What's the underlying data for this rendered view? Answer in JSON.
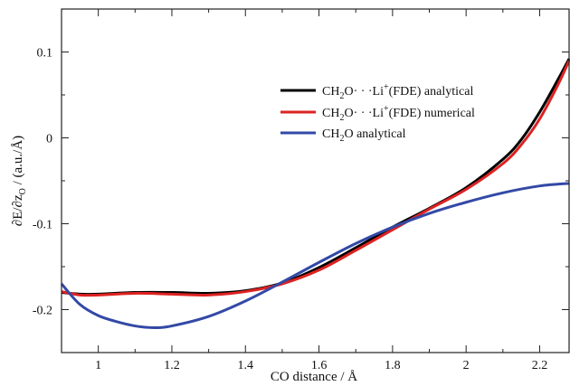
{
  "chart_data": {
    "type": "line",
    "title": "",
    "xlabel": "CO distance / Å",
    "ylabel": "∂E/∂z_O / (a.u./Å)",
    "xlim": [
      0.9,
      2.28
    ],
    "ylim": [
      -0.25,
      0.15
    ],
    "grid": false,
    "legend_position": "top-right",
    "x_ticks": [
      1,
      1.2,
      1.4,
      1.6,
      1.8,
      2,
      2.2
    ],
    "x_tick_labels": [
      "1",
      "1.2",
      "1.4",
      "1.6",
      "1.8",
      "2",
      "2.2"
    ],
    "y_ticks": [
      0.1,
      0,
      -0.1,
      -0.2
    ],
    "y_tick_labels": [
      "0.1",
      "0",
      "-0.1",
      "-0.2"
    ],
    "series": [
      {
        "name": "CH2O···Li+(FDE) analytical",
        "color": "#000000",
        "x": [
          0.9,
          0.95,
          1.0,
          1.1,
          1.2,
          1.3,
          1.4,
          1.5,
          1.6,
          1.7,
          1.8,
          1.9,
          2.0,
          2.1,
          2.15,
          2.2,
          2.25,
          2.28
        ],
        "y": [
          -0.18,
          -0.182,
          -0.182,
          -0.18,
          -0.18,
          -0.181,
          -0.178,
          -0.169,
          -0.151,
          -0.128,
          -0.104,
          -0.082,
          -0.058,
          -0.025,
          -0.002,
          0.03,
          0.068,
          0.092
        ]
      },
      {
        "name": "CH2O···Li+(FDE) numerical",
        "color": "#dd2222",
        "x": [
          0.9,
          0.95,
          1.0,
          1.1,
          1.2,
          1.3,
          1.4,
          1.5,
          1.6,
          1.7,
          1.8,
          1.9,
          2.0,
          2.1,
          2.15,
          2.2,
          2.25,
          2.28
        ],
        "y": [
          -0.179,
          -0.183,
          -0.183,
          -0.181,
          -0.182,
          -0.183,
          -0.179,
          -0.17,
          -0.154,
          -0.131,
          -0.107,
          -0.083,
          -0.06,
          -0.03,
          -0.008,
          0.022,
          0.062,
          0.09
        ]
      },
      {
        "name": "CH2O analytical",
        "color": "#3349a6",
        "x": [
          0.9,
          0.95,
          1.0,
          1.05,
          1.1,
          1.15,
          1.2,
          1.3,
          1.4,
          1.5,
          1.6,
          1.7,
          1.8,
          1.9,
          2.0,
          2.1,
          2.2,
          2.28
        ],
        "y": [
          -0.17,
          -0.194,
          -0.207,
          -0.214,
          -0.219,
          -0.221,
          -0.219,
          -0.208,
          -0.19,
          -0.168,
          -0.145,
          -0.123,
          -0.104,
          -0.088,
          -0.075,
          -0.064,
          -0.056,
          -0.053
        ]
      }
    ]
  }
}
